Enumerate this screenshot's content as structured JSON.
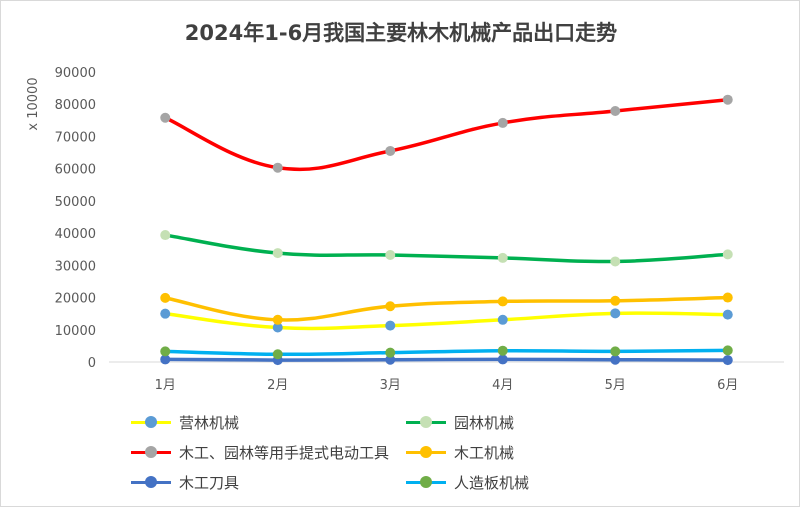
{
  "chart_data": {
    "type": "line",
    "title": "2024年1-6月我国主要林木机械产品出口走势",
    "ylabel": "x 10000",
    "xlabel": "",
    "categories": [
      "1月",
      "2月",
      "3月",
      "4月",
      "5月",
      "6月"
    ],
    "ylim": [
      0,
      90000
    ],
    "yticks": [
      "0",
      "10000",
      "20000",
      "30000",
      "40000",
      "50000",
      "60000",
      "70000",
      "80000",
      "90000"
    ],
    "grid": false,
    "legend_position": "bottom",
    "series": [
      {
        "name": "营林机械",
        "values": [
          15000,
          10700,
          11300,
          13100,
          15100,
          14700
        ],
        "line_color": "#ffff00",
        "marker_color": "#5b9bd5"
      },
      {
        "name": "园林机械",
        "values": [
          39400,
          33800,
          33200,
          32300,
          31200,
          33400
        ],
        "line_color": "#00b050",
        "marker_color": "#c5e0b4"
      },
      {
        "name": "木工、园林等用手提式电动工具",
        "values": [
          75800,
          60300,
          65500,
          74200,
          77900,
          81400
        ],
        "line_color": "#ff0000",
        "marker_color": "#a5a5a5"
      },
      {
        "name": "木工机械",
        "values": [
          19900,
          13100,
          17300,
          18800,
          19000,
          20000
        ],
        "line_color": "#ffc000",
        "marker_color": "#ffc000"
      },
      {
        "name": "木工刀具",
        "values": [
          800,
          600,
          700,
          800,
          700,
          600
        ],
        "line_color": "#4472c4",
        "marker_color": "#4472c4"
      },
      {
        "name": "人造板机械",
        "values": [
          3300,
          2400,
          2900,
          3500,
          3300,
          3600
        ],
        "line_color": "#00b0f0",
        "marker_color": "#70ad47"
      }
    ]
  }
}
